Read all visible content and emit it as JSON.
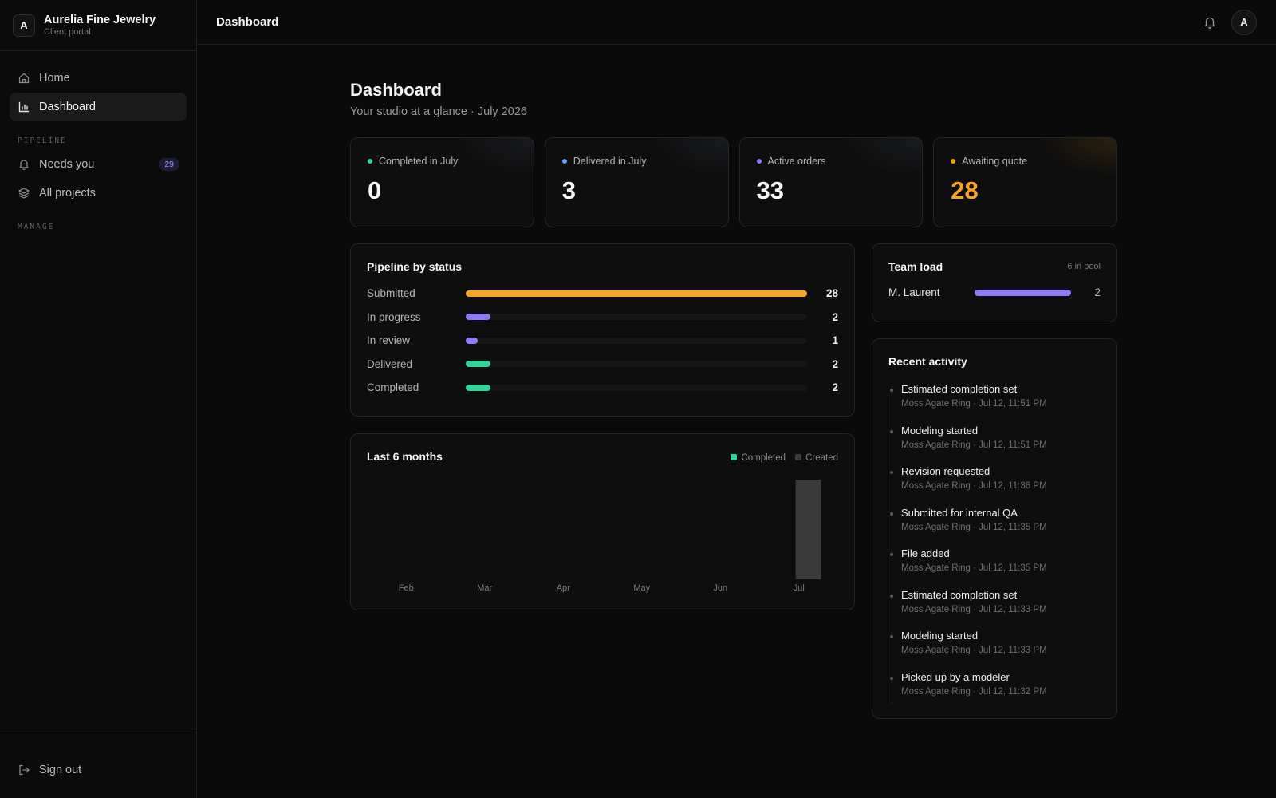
{
  "brand": {
    "logo_letter": "A",
    "name": "Aurelia Fine Jewelry",
    "subtitle": "Client portal"
  },
  "nav": {
    "home": "Home",
    "dashboard": "Dashboard",
    "section_pipeline": "PIPELINE",
    "needs_you": "Needs you",
    "needs_you_badge": "29",
    "all_projects": "All projects",
    "section_manage": "MANAGE",
    "sign_out": "Sign out"
  },
  "topbar": {
    "title": "Dashboard",
    "avatar_letter": "A"
  },
  "page": {
    "title": "Dashboard",
    "subtitle": "Your studio at a glance · July 2026"
  },
  "kpis": [
    {
      "label": "Completed in July",
      "value": "0",
      "dot_color": "#34d399",
      "value_color": "#f5f5f5"
    },
    {
      "label": "Delivered in July",
      "value": "3",
      "dot_color": "#60a5fa",
      "value_color": "#f5f5f5"
    },
    {
      "label": "Active orders",
      "value": "33",
      "dot_color": "#8b7cf6",
      "value_color": "#f5f5f5"
    },
    {
      "label": "Awaiting quote",
      "value": "28",
      "dot_color": "#f59e0b",
      "value_color": "#f5a524"
    }
  ],
  "pipeline": {
    "title": "Pipeline by status",
    "max": 28,
    "rows": [
      {
        "label": "Submitted",
        "count": 28,
        "color": "#f5a524"
      },
      {
        "label": "In progress",
        "count": 2,
        "color": "#8b7cf6"
      },
      {
        "label": "In review",
        "count": 1,
        "color": "#8b7cf6"
      },
      {
        "label": "Delivered",
        "count": 2,
        "color": "#34d399"
      },
      {
        "label": "Completed",
        "count": 2,
        "color": "#34d399"
      }
    ]
  },
  "chart_data": {
    "type": "bar",
    "title": "Last 6 months",
    "categories": [
      "Feb",
      "Mar",
      "Apr",
      "May",
      "Jun",
      "Jul"
    ],
    "series": [
      {
        "name": "Completed",
        "color": "#34d399",
        "values": [
          0,
          0,
          0,
          0,
          0,
          0
        ]
      },
      {
        "name": "Created",
        "color": "#3a3a3a",
        "values": [
          0,
          0,
          0,
          0,
          0,
          33
        ]
      }
    ],
    "legend": "top-right",
    "grid": false
  },
  "team": {
    "title": "Team load",
    "pool": "6 in pool",
    "max": 2,
    "members": [
      {
        "name": "M. Laurent",
        "count": 2
      }
    ]
  },
  "activity": {
    "title": "Recent activity",
    "items": [
      {
        "title": "Estimated completion set",
        "meta": "Moss Agate Ring · Jul 12, 11:51 PM"
      },
      {
        "title": "Modeling started",
        "meta": "Moss Agate Ring · Jul 12, 11:51 PM"
      },
      {
        "title": "Revision requested",
        "meta": "Moss Agate Ring · Jul 12, 11:36 PM"
      },
      {
        "title": "Submitted for internal QA",
        "meta": "Moss Agate Ring · Jul 12, 11:35 PM"
      },
      {
        "title": "File added",
        "meta": "Moss Agate Ring · Jul 12, 11:35 PM"
      },
      {
        "title": "Estimated completion set",
        "meta": "Moss Agate Ring · Jul 12, 11:33 PM"
      },
      {
        "title": "Modeling started",
        "meta": "Moss Agate Ring · Jul 12, 11:33 PM"
      },
      {
        "title": "Picked up by a modeler",
        "meta": "Moss Agate Ring · Jul 12, 11:32 PM"
      }
    ]
  }
}
